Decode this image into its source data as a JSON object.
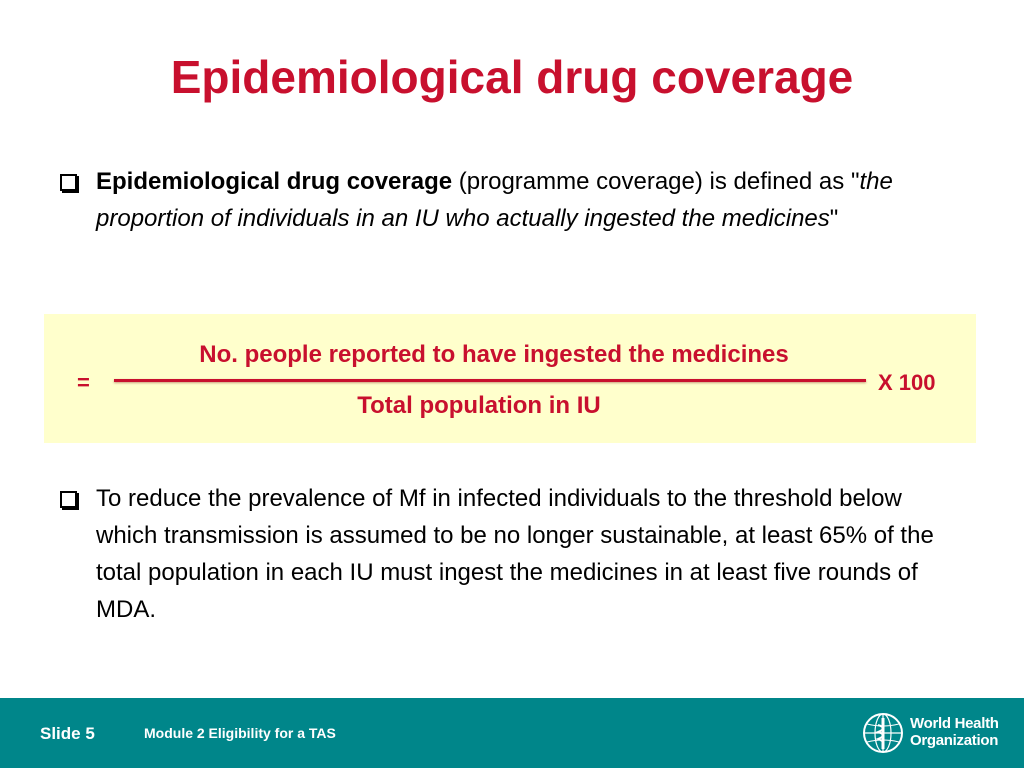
{
  "title": "Epidemiological drug coverage",
  "bullet1": {
    "term": "Epidemiological drug coverage",
    "text1": " (programme coverage) is defined as \"",
    "definition": "the proportion of individuals in an IU who actually ingested the medicines",
    "text2": "\""
  },
  "formula": {
    "equals": "=",
    "numerator": "No. people reported to have ingested the medicines",
    "denominator": "Total population in IU",
    "multiplier": "X 100"
  },
  "bullet2": {
    "text": "To reduce the prevalence of Mf in infected individuals to the threshold below which transmission is assumed to be no longer sustainable, at least 65% of the total population in each IU must ingest the medicines in at least five rounds of MDA."
  },
  "footer": {
    "slide": "Slide 5",
    "module": "Module 2 Eligibility for a TAS",
    "org_line1": "World Health",
    "org_line2": "Organization"
  },
  "colors": {
    "accent": "#c8102e",
    "footer_bg": "#00868a",
    "formula_bg": "#ffffcc"
  }
}
